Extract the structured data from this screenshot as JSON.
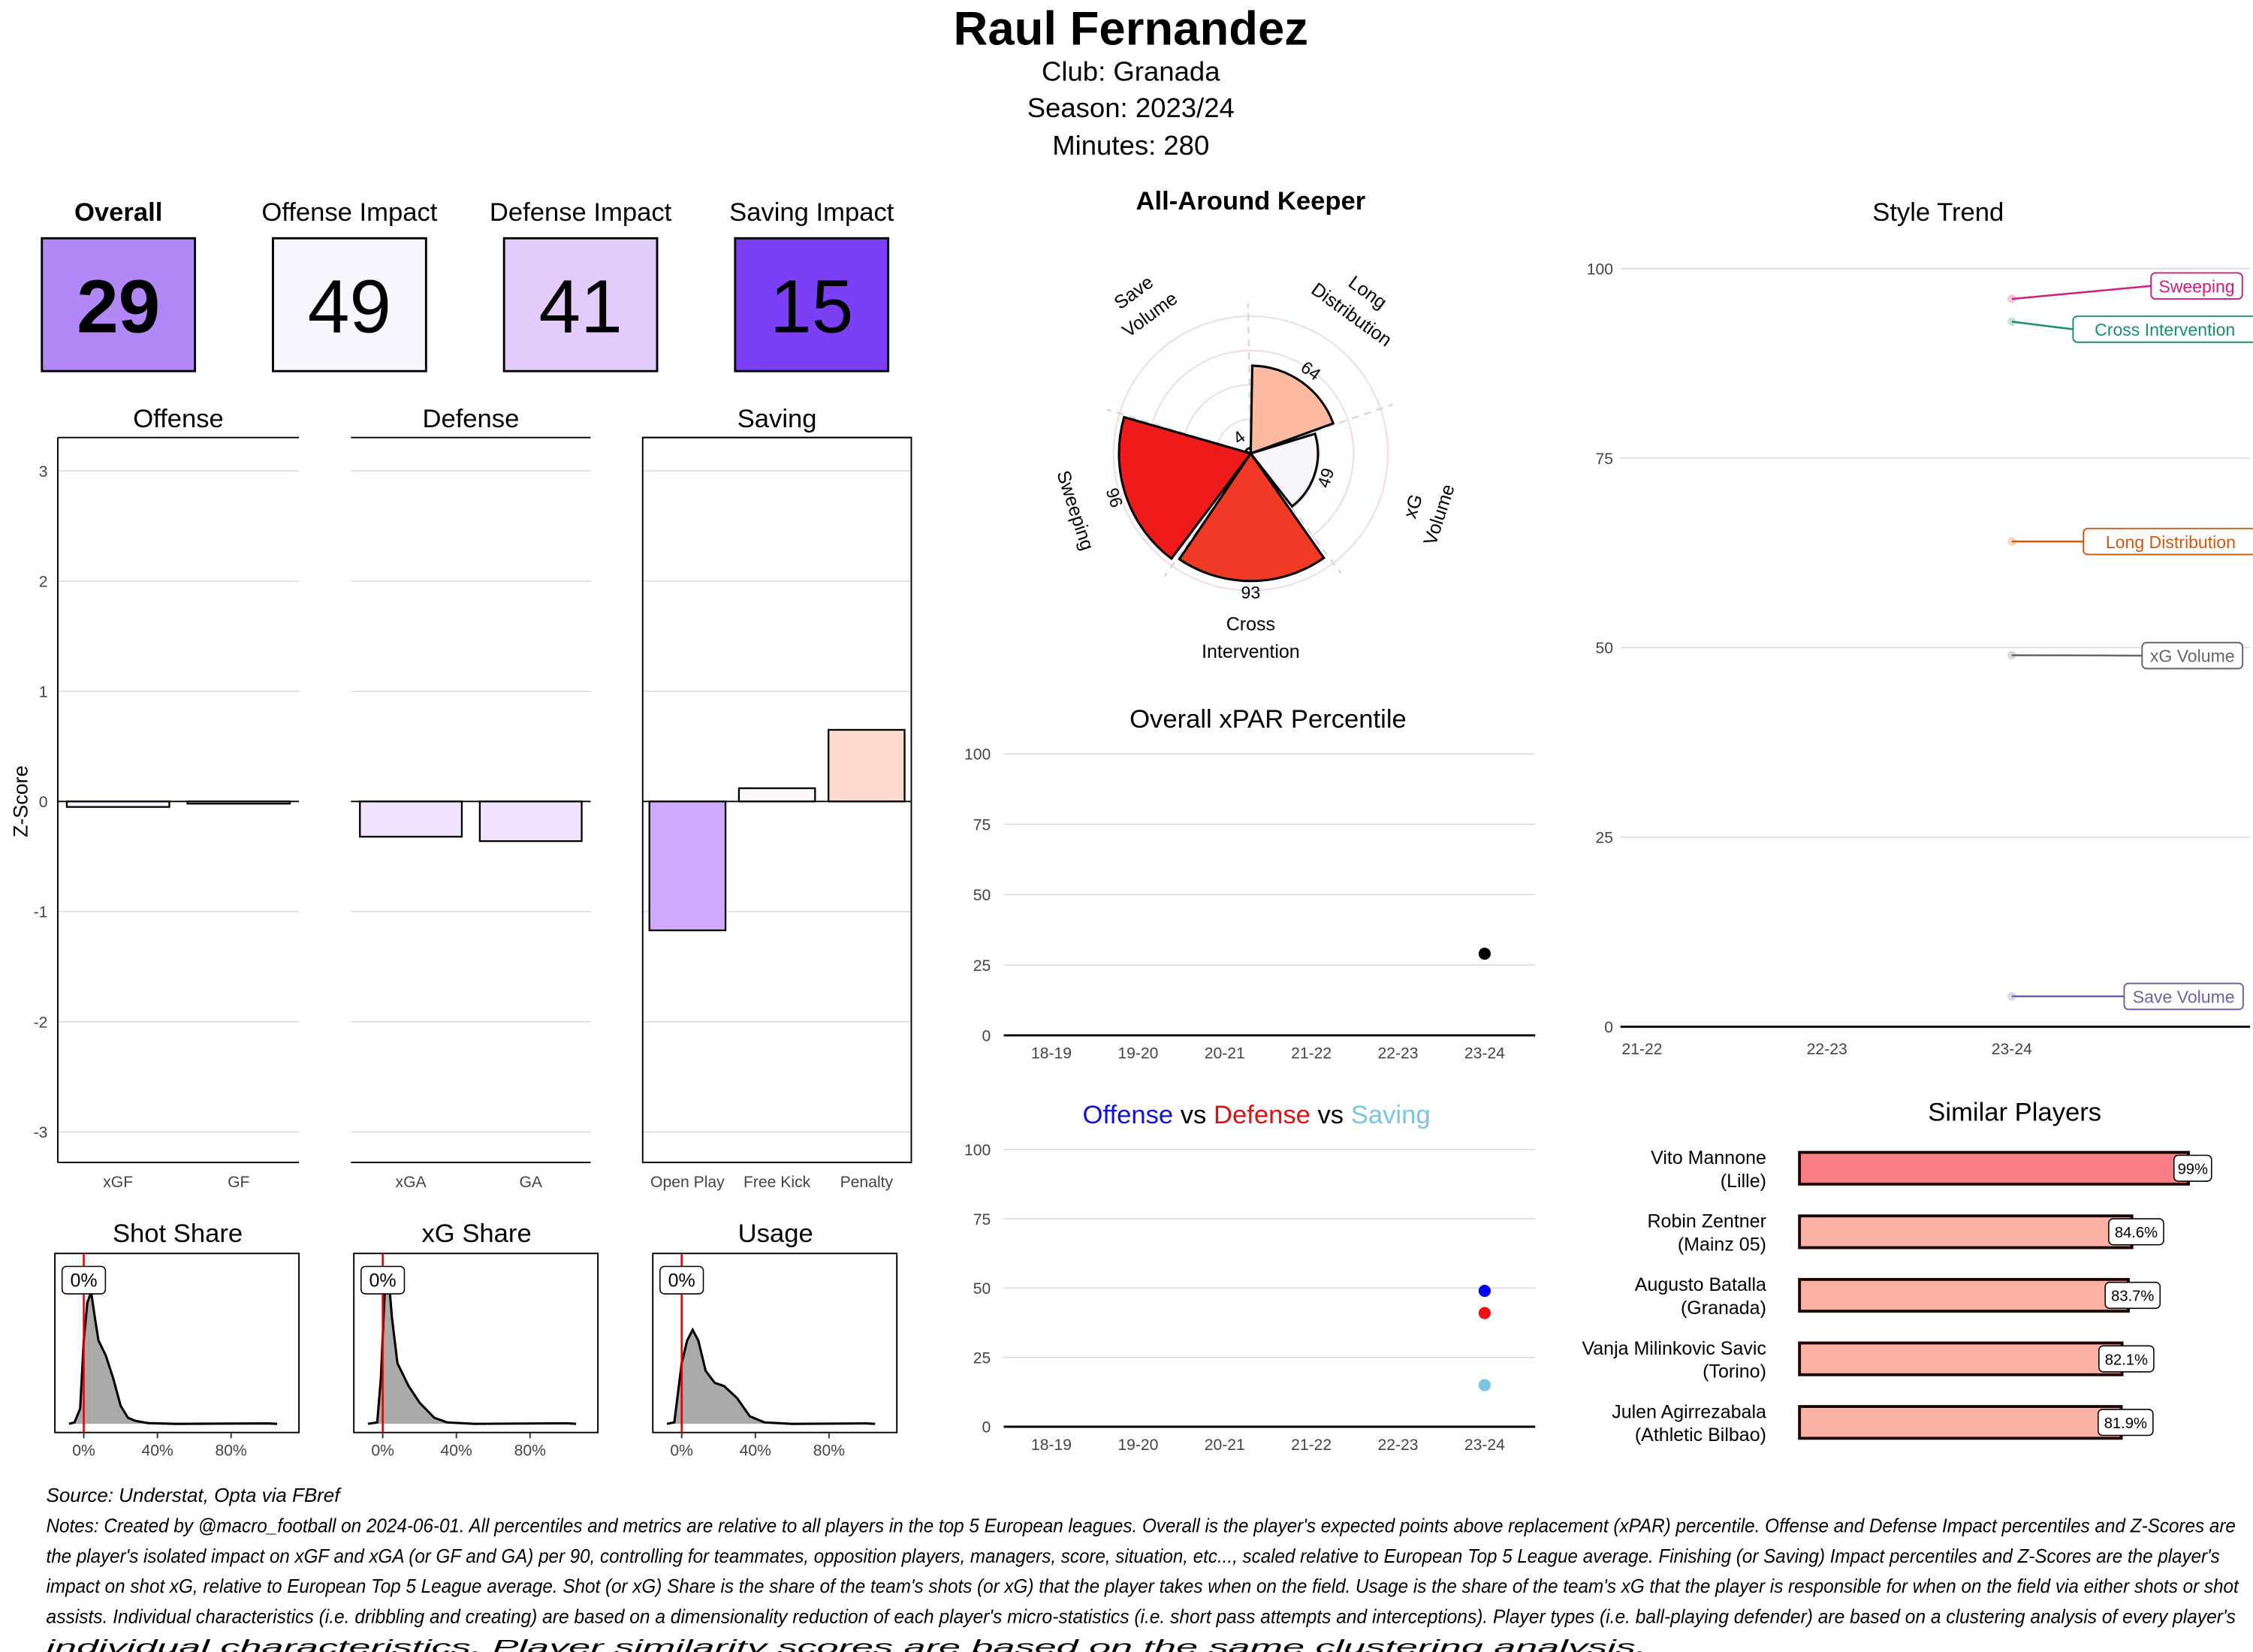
{
  "header": {
    "player": "Raul Fernandez",
    "club_line": "Club:  Granada",
    "season_line": "Season:  2023/24",
    "minutes_line": "Minutes:  280"
  },
  "tiles": [
    {
      "label": "Overall",
      "value": "29",
      "color": "#b187f6",
      "bold": true
    },
    {
      "label": "Offense Impact",
      "value": "49",
      "color": "#f8f6ff",
      "bold": false
    },
    {
      "label": "Defense Impact",
      "value": "41",
      "color": "#e3cbfb",
      "bold": false
    },
    {
      "label": "Saving Impact",
      "value": "15",
      "color": "#7b40f6",
      "bold": false
    }
  ],
  "footer": {
    "source": "Source: Understat, Opta via FBref",
    "notes": [
      "Notes: Created by @macro_football on 2024-06-01. All percentiles and metrics are relative to all players in the top 5 European leagues. Overall is the player's expected points above replacement (xPAR) percentile. Offense and Defense Impact percentiles and Z-Scores are",
      "the player's isolated impact on xGF and xGA (or GF and GA) per 90, controlling for teammates, opposition players, managers, score, situation, etc..., scaled relative to European Top 5 League average. Finishing (or Saving) Impact percentiles and Z-Scores are the player's",
      "impact on shot xG, relative to European Top 5 League average. Shot (or xG) Share is the share of the team's shots (or xG) that the player takes when on the field. Usage is the share of the team's xG that the player is responsible for when on the field via either shots or shot",
      "assists. Individual characteristics (i.e. dribbling and creating) are based on a dimensionality reduction of each player's micro-statistics (i.e. short pass attempts and interceptions). Player types (i.e. ball-playing defender) are based on a clustering analysis of every player's",
      "individual characteristics. Player similarity scores are based on the same clustering analysis."
    ]
  },
  "chart_data": [
    {
      "type": "bar",
      "id": "zscores",
      "ylabel": "Z-Score",
      "ylim": [
        -3.3,
        3.3
      ],
      "yticks": [
        -3,
        -2,
        -1,
        0,
        1,
        2,
        3
      ],
      "panels": [
        {
          "title": "Offense",
          "categories": [
            "xGF",
            "GF"
          ],
          "values": [
            -0.05,
            -0.02
          ],
          "colors": [
            "#f6f0ff",
            "#f6f0ff"
          ]
        },
        {
          "title": "Defense",
          "categories": [
            "xGA",
            "GA"
          ],
          "values": [
            -0.32,
            -0.36
          ],
          "colors": [
            "#efe3fd",
            "#efe3fd"
          ]
        },
        {
          "title": "Saving",
          "categories": [
            "Open Play",
            "Free Kick",
            "Penalty"
          ],
          "values": [
            -1.17,
            0.12,
            0.65
          ],
          "colors": [
            "#cfa9fb",
            "#fff7f7",
            "#fdd8cd"
          ]
        }
      ]
    },
    {
      "type": "area",
      "id": "densities",
      "xticks": [
        "0%",
        "40%",
        "80%"
      ],
      "panels": [
        {
          "title": "Shot Share",
          "player_value": 0,
          "player_label": "0%",
          "x": [
            -8,
            -5,
            -2,
            0,
            2,
            4,
            6,
            8,
            12,
            16,
            20,
            24,
            28,
            35,
            50,
            100,
            105
          ],
          "y": [
            0,
            0.01,
            0.1,
            0.55,
            0.8,
            0.87,
            0.7,
            0.55,
            0.45,
            0.3,
            0.12,
            0.04,
            0.02,
            0.005,
            0,
            0.003,
            0
          ]
        },
        {
          "title": "xG Share",
          "player_value": 0,
          "player_label": "0%",
          "x": [
            -8,
            -3,
            -1,
            1,
            3,
            5,
            8,
            14,
            20,
            28,
            35,
            50,
            100,
            105
          ],
          "y": [
            0,
            0.01,
            0.3,
            0.85,
            1.0,
            0.7,
            0.4,
            0.25,
            0.14,
            0.04,
            0.01,
            0,
            0.004,
            0
          ]
        },
        {
          "title": "Usage",
          "player_value": 0,
          "player_label": "0%",
          "x": [
            -8,
            -4,
            0,
            3,
            6,
            9,
            13,
            18,
            23,
            30,
            37,
            45,
            60,
            100,
            105
          ],
          "y": [
            0,
            0.01,
            0.4,
            0.55,
            0.62,
            0.55,
            0.35,
            0.27,
            0.25,
            0.17,
            0.05,
            0.01,
            0,
            0.003,
            0
          ]
        }
      ]
    },
    {
      "type": "bar",
      "subtype": "polar",
      "id": "radar",
      "title": "All-Around Keeper",
      "categories": [
        "Long Distribution",
        "xG Volume",
        "Cross Intervention",
        "Sweeping",
        "Save Volume"
      ],
      "label_lines": [
        [
          "Long",
          "Distribution"
        ],
        [
          "xG",
          "Volume"
        ],
        [
          "Cross",
          "Intervention"
        ],
        [
          "Sweeping"
        ],
        [
          "Save",
          "Volume"
        ]
      ],
      "values": [
        64,
        49,
        93,
        96,
        4
      ],
      "value_labels": [
        "64",
        "49",
        "93",
        "96",
        "4"
      ],
      "colors": [
        "#fcbba1",
        "#f8f5fb",
        "#f03a25",
        "#ef1b1a",
        "#fff0ec"
      ],
      "ylim": [
        0,
        100
      ]
    },
    {
      "type": "scatter",
      "id": "xpar",
      "title": "Overall xPAR Percentile",
      "categories": [
        "18-19",
        "19-20",
        "20-21",
        "21-22",
        "22-23",
        "23-24"
      ],
      "yticks": [
        "0",
        "25",
        "50",
        "75",
        "100"
      ],
      "ylim": [
        0,
        100
      ],
      "series": [
        {
          "name": "Overall",
          "color": "#000000",
          "points": [
            {
              "x": "23-24",
              "y": 29
            }
          ]
        }
      ]
    },
    {
      "type": "scatter",
      "id": "odv",
      "title_parts": [
        "Offense",
        "vs",
        "Defense",
        "vs",
        "Saving"
      ],
      "title_colors": [
        "#1010e0",
        "#000000",
        "#e01010",
        "#000000",
        "#7cc4e6"
      ],
      "categories": [
        "18-19",
        "19-20",
        "20-21",
        "21-22",
        "22-23",
        "23-24"
      ],
      "yticks": [
        "0",
        "25",
        "50",
        "75",
        "100"
      ],
      "ylim": [
        0,
        100
      ],
      "series": [
        {
          "name": "Offense",
          "color": "#0000ee",
          "points": [
            {
              "x": "23-24",
              "y": 49
            }
          ]
        },
        {
          "name": "Defense",
          "color": "#ee1111",
          "points": [
            {
              "x": "23-24",
              "y": 41
            }
          ]
        },
        {
          "name": "Saving",
          "color": "#7cc4e6",
          "points": [
            {
              "x": "23-24",
              "y": 15
            }
          ]
        }
      ]
    },
    {
      "type": "line",
      "id": "style_trend",
      "title": "Style Trend",
      "categories": [
        "21-22",
        "22-23",
        "23-24"
      ],
      "yticks": [
        "0",
        "25",
        "50",
        "75",
        "100"
      ],
      "ylim": [
        0,
        100
      ],
      "series": [
        {
          "name": "Sweeping",
          "color": "#d01c7b",
          "values": [
            null,
            null,
            96
          ]
        },
        {
          "name": "Cross Intervention",
          "color": "#1b8e6f",
          "values": [
            null,
            null,
            93
          ]
        },
        {
          "name": "Long Distribution",
          "color": "#d0580f",
          "values": [
            null,
            null,
            64
          ]
        },
        {
          "name": "xG Volume",
          "color": "#666666",
          "values": [
            null,
            null,
            49
          ]
        },
        {
          "name": "Save Volume",
          "color": "#6a64a8",
          "values": [
            null,
            null,
            4
          ]
        }
      ]
    },
    {
      "type": "bar",
      "orientation": "horizontal",
      "id": "similar",
      "title": "Similar Players",
      "names": [
        "Vito Mannone",
        "Robin Zentner",
        "Augusto Batalla",
        "Vanja Milinkovic Savic",
        "Julen Agirrezabala"
      ],
      "clubs": [
        "(Lille)",
        "(Mainz 05)",
        "(Granada)",
        "(Torino)",
        "(Athletic Bilbao)"
      ],
      "values": [
        99,
        84.6,
        83.7,
        82.1,
        81.9
      ],
      "value_labels": [
        "99%",
        "84.6%",
        "83.7%",
        "82.1%",
        "81.9%"
      ],
      "colors": [
        "#f97d84",
        "#fbb1a4",
        "#fbb1a4",
        "#fbb1a4",
        "#fbb1a4"
      ]
    }
  ]
}
